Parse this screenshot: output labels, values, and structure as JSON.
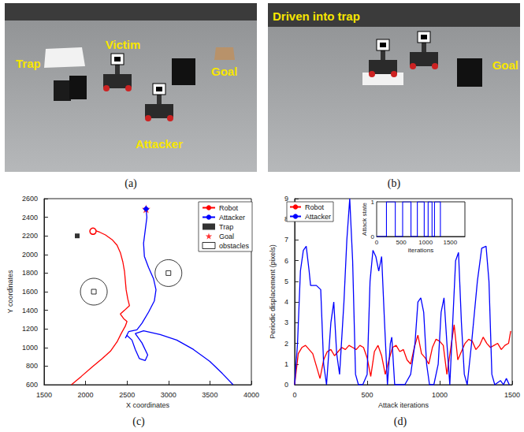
{
  "photos": [
    {
      "caption": "(a)",
      "labels": [
        "Trap",
        "Victim",
        "Goal",
        "Attacker"
      ]
    },
    {
      "caption": "(b)",
      "labels": [
        "Driven into trap",
        "Goal"
      ]
    }
  ],
  "chart_data": [
    {
      "type": "line",
      "caption": "(c)",
      "x_label": "X coordinates",
      "y_label": "Y coordinates",
      "xlim": [
        1500,
        4000
      ],
      "xticks": [
        1500,
        2000,
        2500,
        3000,
        3500,
        4000
      ],
      "ylim": [
        600,
        2600
      ],
      "yticks": [
        600,
        800,
        1000,
        1200,
        1400,
        1600,
        1800,
        2000,
        2200,
        2400,
        2600
      ],
      "grid": false,
      "legend": "upper right",
      "series": [
        {
          "name": "Robot",
          "type": "line",
          "color": "#ff0000",
          "marker": "circle",
          "x": [
            1830,
            1950,
            2080,
            2200,
            2300,
            2380,
            2430,
            2480,
            2500,
            2460,
            2420,
            2470,
            2530,
            2510,
            2490,
            2480,
            2470,
            2450,
            2420,
            2380,
            2320,
            2240,
            2170,
            2120,
            2090
          ],
          "values": [
            600,
            690,
            790,
            880,
            960,
            1060,
            1150,
            1230,
            1280,
            1310,
            1360,
            1400,
            1450,
            1520,
            1620,
            1720,
            1820,
            1920,
            2020,
            2100,
            2160,
            2210,
            2240,
            2255,
            2250
          ]
        },
        {
          "name": "Attacker",
          "type": "line",
          "color": "#0000ff",
          "marker": "diamond",
          "x": [
            3780,
            3650,
            3500,
            3300,
            3100,
            2900,
            2700,
            2600,
            2680,
            2750,
            2720,
            2650,
            2600,
            2560,
            2500,
            2480,
            2520,
            2620,
            2680,
            2760,
            2830,
            2850,
            2820,
            2760,
            2710,
            2700,
            2720,
            2740,
            2730
          ],
          "values": [
            600,
            720,
            850,
            980,
            1080,
            1140,
            1180,
            1150,
            1050,
            920,
            860,
            880,
            980,
            1080,
            1130,
            1100,
            1170,
            1190,
            1260,
            1380,
            1500,
            1620,
            1740,
            1860,
            1980,
            2120,
            2260,
            2400,
            2490
          ]
        },
        {
          "name": "Trap",
          "type": "scatter",
          "color": "#000000",
          "marker": "square",
          "x": [
            1900
          ],
          "values": [
            2200
          ]
        },
        {
          "name": "Goal",
          "type": "scatter",
          "color": "#ff0000",
          "marker": "star",
          "x": [
            2730
          ],
          "values": [
            2490
          ]
        },
        {
          "name": "obstacles",
          "type": "scatter",
          "color": "#000000",
          "marker": "open_square",
          "x": [
            2100,
            3000
          ],
          "values": [
            1600,
            1800
          ]
        }
      ]
    },
    {
      "type": "line",
      "caption": "(d)",
      "x_label": "Attack iterations",
      "y_label": "Periodic displacement (pixels)",
      "xlim": [
        0,
        1500
      ],
      "xticks": [
        0,
        500,
        1000,
        1500
      ],
      "ylim": [
        0,
        9
      ],
      "yticks": [
        0,
        1,
        2,
        3,
        4,
        5,
        6,
        7,
        8,
        9
      ],
      "grid": false,
      "legend": "upper left",
      "series": [
        {
          "name": "Robot",
          "color": "#ff0000",
          "x": [
            0,
            25,
            50,
            75,
            100,
            125,
            150,
            175,
            200,
            225,
            250,
            275,
            300,
            325,
            350,
            375,
            400,
            425,
            450,
            475,
            500,
            525,
            550,
            575,
            600,
            625,
            650,
            675,
            700,
            725,
            750,
            775,
            800,
            825,
            850,
            875,
            900,
            925,
            950,
            975,
            1000,
            1025,
            1050,
            1075,
            1100,
            1125,
            1150,
            1175,
            1200,
            1225,
            1250,
            1275,
            1300,
            1325,
            1350,
            1375,
            1400,
            1425,
            1450,
            1475,
            1490
          ],
          "values": [
            0,
            1.5,
            1.8,
            1.9,
            1.7,
            1.5,
            0.9,
            0.3,
            1.2,
            1.6,
            1.7,
            1.4,
            1.6,
            1.8,
            1.7,
            1.9,
            1.8,
            1.7,
            1.9,
            1.8,
            1.3,
            0.4,
            1.6,
            1.9,
            1.4,
            0.5,
            1.2,
            1.8,
            1.9,
            1.6,
            1.7,
            1.2,
            1.0,
            1.8,
            2.4,
            1.5,
            1.3,
            1.0,
            1.8,
            2.2,
            2.1,
            1.9,
            0.5,
            1.7,
            2.9,
            1.2,
            1.6,
            2.0,
            2.2,
            2.1,
            1.7,
            1.9,
            2.3,
            2.0,
            1.8,
            1.9,
            2.0,
            1.7,
            1.9,
            2.0,
            2.6
          ]
        },
        {
          "name": "Attacker",
          "color": "#0000ff",
          "x": [
            0,
            20,
            40,
            60,
            80,
            100,
            110,
            150,
            180,
            200,
            220,
            250,
            270,
            290,
            310,
            340,
            360,
            380,
            400,
            420,
            440,
            470,
            500,
            520,
            540,
            560,
            580,
            600,
            620,
            640,
            660,
            670,
            690,
            720,
            760,
            800,
            830,
            850,
            870,
            890,
            910,
            930,
            960,
            990,
            1010,
            1030,
            1050,
            1070,
            1090,
            1110,
            1130,
            1150,
            1170,
            1190,
            1220,
            1260,
            1290,
            1320,
            1340,
            1360,
            1380,
            1420,
            1440,
            1460,
            1480
          ],
          "values": [
            0,
            2,
            5.5,
            6.5,
            6.7,
            5.5,
            4.8,
            4.8,
            4.6,
            1,
            0,
            3,
            4,
            1.5,
            0.5,
            4,
            7,
            9,
            6,
            0.5,
            0,
            0,
            0.5,
            5,
            6.5,
            6.2,
            5.5,
            6.2,
            3,
            0,
            2,
            2.3,
            0,
            0,
            0,
            0.5,
            2,
            4,
            4.2,
            3.5,
            1,
            0,
            0,
            1,
            3.5,
            4.2,
            2,
            0,
            3,
            6,
            6.4,
            3,
            0.5,
            0,
            2,
            5,
            6.6,
            6.7,
            5,
            0.5,
            0,
            0.2,
            0,
            0.3,
            0
          ]
        }
      ],
      "inset": {
        "x_label": "iterations",
        "y_label": "Attack state",
        "xlim": [
          0,
          1800
        ],
        "xticks": [
          0,
          500,
          1000,
          1500
        ],
        "ylim": [
          0,
          1
        ],
        "yticks": [
          0,
          1
        ],
        "series": [
          {
            "color": "#0000ff",
            "line_style": "step",
            "x": [
              0,
              200,
              380,
              530,
              700,
              830,
              970,
              1050,
              1130,
              1180,
              1300
            ],
            "values": [
              0,
              1,
              0,
              1,
              0,
              1,
              0,
              1,
              0,
              1,
              0
            ]
          }
        ]
      }
    }
  ]
}
